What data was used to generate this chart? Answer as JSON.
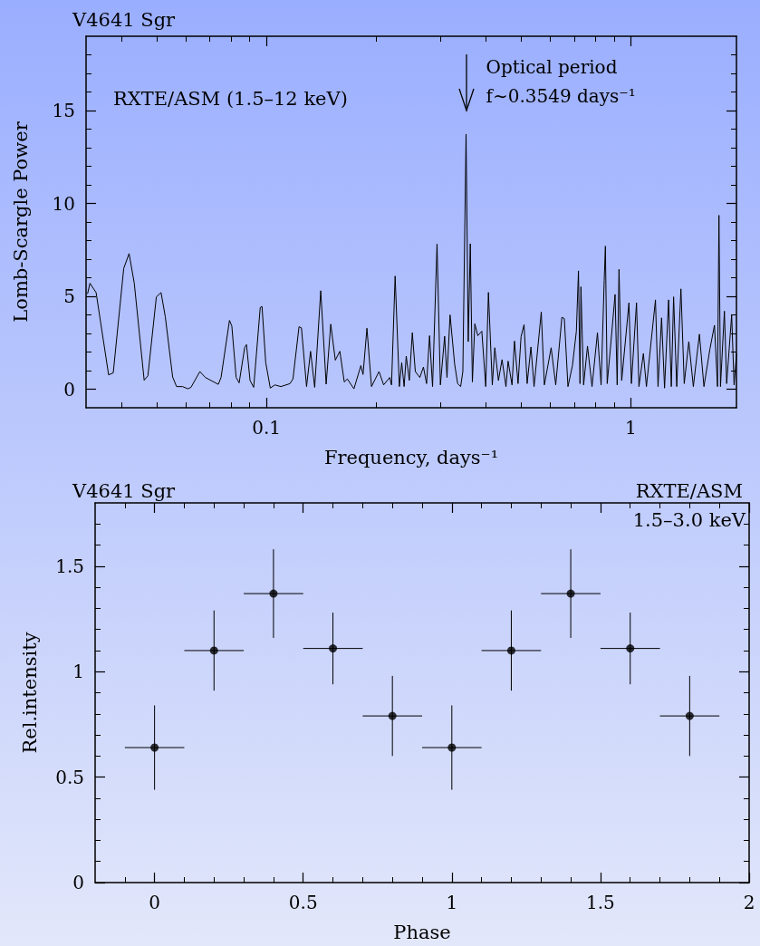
{
  "chart_data": [
    {
      "type": "line",
      "title": "V4641 Sgr",
      "xlabel": "Frequency, days⁻¹",
      "ylabel": "Lomb-Scargle Power",
      "color": "#000000",
      "log": "x",
      "annotations": [
        "RXTE/ASM (1.5–12 keV)",
        {
          "text": "Optical period\nf∼0.3549 days⁻¹",
          "x": 0.3532,
          "y": 13.73
        }
      ],
      "x": [
        0.0323,
        0.0328,
        0.0341,
        0.0369,
        0.038,
        0.0406,
        0.042,
        0.0434,
        0.0462,
        0.0473,
        0.0499,
        0.0514,
        0.0528,
        0.0553,
        0.0567,
        0.0589,
        0.0609,
        0.0621,
        0.0657,
        0.068,
        0.0738,
        0.0751,
        0.0792,
        0.0804,
        0.0826,
        0.0842,
        0.0872,
        0.0882,
        0.0902,
        0.0923,
        0.0962,
        0.0973,
        0.0996,
        0.1025,
        0.1055,
        0.1096,
        0.1161,
        0.1183,
        0.1229,
        0.1248,
        0.1289,
        0.1322,
        0.1357,
        0.141,
        0.1459,
        0.1502,
        0.1546,
        0.1591,
        0.1636,
        0.1668,
        0.1739,
        0.1817,
        0.1842,
        0.1888,
        0.1943,
        0.2038,
        0.2098,
        0.218,
        0.2205,
        0.2256,
        0.2317,
        0.2352,
        0.2388,
        0.242,
        0.2468,
        0.2515,
        0.2563,
        0.2637,
        0.2698,
        0.2752,
        0.2804,
        0.2858,
        0.294,
        0.3003,
        0.3085,
        0.3131,
        0.3192,
        0.3286,
        0.3349,
        0.3413,
        0.3461,
        0.3532,
        0.3581,
        0.3628,
        0.3676,
        0.3733,
        0.3804,
        0.3902,
        0.3999,
        0.4068,
        0.4169,
        0.4235,
        0.4333,
        0.4434,
        0.4545,
        0.4607,
        0.4722,
        0.4796,
        0.4906,
        0.5,
        0.5095,
        0.5196,
        0.5322,
        0.5428,
        0.5681,
        0.5792,
        0.6047,
        0.6224,
        0.6471,
        0.6572,
        0.6724,
        0.6918,
        0.7091,
        0.7186,
        0.7256,
        0.7298,
        0.7423,
        0.7608,
        0.7829,
        0.8102,
        0.8291,
        0.8455,
        0.8519,
        0.8617,
        0.8781,
        0.9057,
        0.9177,
        0.9284,
        0.9443,
        0.9663,
        0.9886,
        1.004,
        1.037,
        1.053,
        1.083,
        1.104,
        1.169,
        1.188,
        1.215,
        1.238,
        1.27,
        1.292,
        1.311,
        1.337,
        1.373,
        1.402,
        1.443,
        1.485,
        1.543,
        1.588,
        1.649,
        1.697,
        1.73,
        1.746,
        1.763,
        1.807,
        1.833,
        1.892,
        1.921,
        1.95
      ],
      "values": [
        5.13,
        5.7,
        5.2,
        0.77,
        0.88,
        6.5,
        7.3,
        5.7,
        0.48,
        0.72,
        4.97,
        5.2,
        3.9,
        0.66,
        0.14,
        0.14,
        0.02,
        0.1,
        0.95,
        0.63,
        0.26,
        0.63,
        3.7,
        3.4,
        0.63,
        0.34,
        2.25,
        2.4,
        0.47,
        0.1,
        4.4,
        4.45,
        1.43,
        0.06,
        0.23,
        0.14,
        0.3,
        0.55,
        3.36,
        3.3,
        0.14,
        2.04,
        0.1,
        5.3,
        0.27,
        3.5,
        1.56,
        2.04,
        0.39,
        0.55,
        0.02,
        1.27,
        0.79,
        3.28,
        0.14,
        0.95,
        0.23,
        0.63,
        0.23,
        6.09,
        0.14,
        1.43,
        0.14,
        1.78,
        0.47,
        3.04,
        0.95,
        0.63,
        1.19,
        0.3,
        2.88,
        0.14,
        7.81,
        0.23,
        2.85,
        0.63,
        4.0,
        1.35,
        0.3,
        0.14,
        0.95,
        13.73,
        2.56,
        7.83,
        0.39,
        3.52,
        2.88,
        3.12,
        0.14,
        5.21,
        0.23,
        2.23,
        0.47,
        1.59,
        0.14,
        1.51,
        0.23,
        2.59,
        0.3,
        2.83,
        3.47,
        0.3,
        2.27,
        0.14,
        4.16,
        0.23,
        2.23,
        0.23,
        3.87,
        3.8,
        0.14,
        1.27,
        3.12,
        6.37,
        0.3,
        5.51,
        0.23,
        2.32,
        0.14,
        3.04,
        0.23,
        5.85,
        7.7,
        0.3,
        2.07,
        5.1,
        0.23,
        6.45,
        0.47,
        2.56,
        4.65,
        0.3,
        4.65,
        0.14,
        1.92,
        0.14,
        4.81,
        0.14,
        3.84,
        0.06,
        4.81,
        0.14,
        4.97,
        0.14,
        5.4,
        0.3,
        2.56,
        0.14,
        2.96,
        0.14,
        2.16,
        3.44,
        0.14,
        9.36,
        0.14,
        4.2,
        0.3,
        4.0,
        0.23,
        1.92
      ],
      "xlim": [
        0.032,
        1.95
      ],
      "xticks": [
        {
          "value": 0.04,
          "label": null
        },
        {
          "value": 0.05,
          "label": null
        },
        {
          "value": 0.06,
          "label": null
        },
        {
          "value": 0.07,
          "label": null
        },
        {
          "value": 0.08,
          "label": null
        },
        {
          "value": 0.09,
          "label": null
        },
        0.1,
        {
          "value": 0.2,
          "label": null
        },
        {
          "value": 0.3,
          "label": null
        },
        {
          "value": 0.4,
          "label": null
        },
        {
          "value": 0.5,
          "label": null
        },
        {
          "value": 0.6,
          "label": null
        },
        {
          "value": 0.7,
          "label": null
        },
        {
          "value": 0.8,
          "label": null
        },
        {
          "value": 0.9,
          "label": null
        },
        1
      ],
      "ylim": [
        -1,
        19
      ],
      "yticks": [
        0,
        {
          "value": 1,
          "label": null
        },
        {
          "value": 2,
          "label": null
        },
        {
          "value": 3,
          "label": null
        },
        {
          "value": 4,
          "label": null
        },
        5,
        {
          "value": 6,
          "label": null
        },
        {
          "value": 7,
          "label": null
        },
        {
          "value": 8,
          "label": null
        },
        {
          "value": 9,
          "label": null
        },
        10,
        {
          "value": 11,
          "label": null
        },
        {
          "value": 12,
          "label": null
        },
        {
          "value": 13,
          "label": null
        },
        {
          "value": 14,
          "label": null
        },
        15,
        {
          "value": 16,
          "label": null
        },
        {
          "value": 17,
          "label": null
        },
        {
          "value": 18,
          "label": null
        }
      ]
    },
    {
      "type": "scatter",
      "title": "V4641 Sgr",
      "subtitle": "RXTE/ASM",
      "xlabel": "Phase",
      "ylabel": "Rel.intensity",
      "color": "#000000",
      "marker": "circle",
      "annotations": [
        "1.5–3.0 keV"
      ],
      "x": [
        0,
        0.2,
        0.4,
        0.6,
        0.8,
        1.0,
        1.2,
        1.4,
        1.6,
        1.8
      ],
      "values": [
        0.64,
        1.1,
        1.37,
        1.11,
        0.79,
        0.64,
        1.1,
        1.37,
        1.11,
        0.79
      ],
      "errors": [
        0.2,
        0.19,
        0.21,
        0.17,
        0.19,
        0.2,
        0.19,
        0.21,
        0.17,
        0.19
      ],
      "xerrors": [
        0.1,
        0.1,
        0.1,
        0.1,
        0.1,
        0.1,
        0.1,
        0.1,
        0.1,
        0.1
      ],
      "xlim": [
        -0.2,
        2
      ],
      "xticks": [
        {
          "value": -0.1,
          "label": null
        },
        0,
        {
          "value": 0.1,
          "label": null
        },
        {
          "value": 0.2,
          "label": null
        },
        {
          "value": 0.3,
          "label": null
        },
        {
          "value": 0.4,
          "label": null
        },
        0.5,
        {
          "value": 0.6,
          "label": null
        },
        {
          "value": 0.7,
          "label": null
        },
        {
          "value": 0.8,
          "label": null
        },
        {
          "value": 0.9,
          "label": null
        },
        1,
        {
          "value": 1.1,
          "label": null
        },
        {
          "value": 1.2,
          "label": null
        },
        {
          "value": 1.3,
          "label": null
        },
        {
          "value": 1.4,
          "label": null
        },
        1.5,
        {
          "value": 1.6,
          "label": null
        },
        {
          "value": 1.7,
          "label": null
        },
        {
          "value": 1.8,
          "label": null
        },
        {
          "value": 1.9,
          "label": null
        },
        2
      ],
      "ylim": [
        0,
        1.8
      ],
      "yticks": [
        0,
        {
          "value": 0.1,
          "label": null
        },
        {
          "value": 0.2,
          "label": null
        },
        {
          "value": 0.3,
          "label": null
        },
        {
          "value": 0.4,
          "label": null
        },
        0.5,
        {
          "value": 0.6,
          "label": null
        },
        {
          "value": 0.7,
          "label": null
        },
        {
          "value": 0.8,
          "label": null
        },
        {
          "value": 0.9,
          "label": null
        },
        1,
        {
          "value": 1.1,
          "label": null
        },
        {
          "value": 1.2,
          "label": null
        },
        {
          "value": 1.3,
          "label": null
        },
        {
          "value": 1.4,
          "label": null
        },
        1.5,
        {
          "value": 1.6,
          "label": null
        },
        {
          "value": 1.7,
          "label": null
        }
      ]
    }
  ]
}
